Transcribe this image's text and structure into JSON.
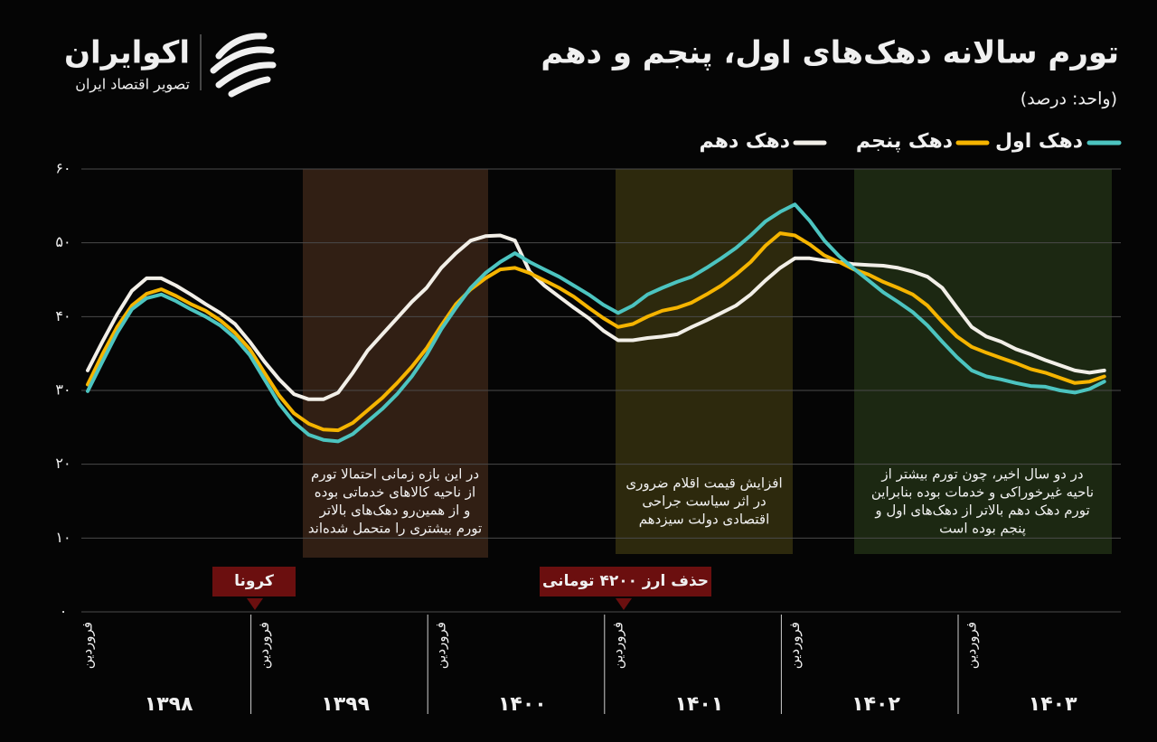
{
  "header": {
    "logo_name": "اکوایران",
    "logo_tagline": "تصویر اقتصاد ایران"
  },
  "chart_data": {
    "type": "line",
    "title": "تورم سالانه دهک‌های اول، پنجم و دهم",
    "subtitle": "(واحد: درصد)",
    "categories": [
      "فروردین",
      null,
      null,
      null,
      null,
      null,
      null,
      null,
      null,
      null,
      null,
      null,
      "فروردین",
      null,
      null,
      null,
      null,
      null,
      null,
      null,
      null,
      null,
      null,
      null,
      "فروردین",
      null,
      null,
      null,
      null,
      null,
      null,
      null,
      null,
      null,
      null,
      null,
      "فروردین",
      null,
      null,
      null,
      null,
      null,
      null,
      null,
      null,
      null,
      null,
      null,
      "فروردین",
      null,
      null,
      null,
      null,
      null,
      null,
      null,
      null,
      null,
      null,
      null,
      "فروردین",
      null,
      null,
      null,
      null,
      null,
      null,
      null,
      null,
      null
    ],
    "x_group_labels": [
      "۱۳۹۸",
      "۱۳۹۹",
      "۱۴۰۰",
      "۱۴۰۱",
      "۱۴۰۲",
      "۱۴۰۳"
    ],
    "series": [
      {
        "name": "دهک اول",
        "color": "#4cc4c0",
        "values": [
          29.9,
          33.9,
          37.8,
          41.0,
          42.5,
          43.0,
          42.1,
          41.0,
          40.0,
          38.8,
          37.1,
          34.8,
          31.5,
          28.2,
          25.7,
          24.0,
          23.3,
          23.1,
          24.1,
          25.8,
          27.5,
          29.5,
          31.9,
          34.8,
          38.3,
          41.2,
          43.9,
          45.9,
          47.4,
          48.6,
          47.4,
          46.4,
          45.4,
          44.2,
          43.0,
          41.6,
          40.5,
          41.5,
          43.0,
          43.9,
          44.7,
          45.4,
          46.6,
          47.9,
          49.3,
          51.0,
          52.9,
          54.2,
          55.2,
          53.0,
          50.3,
          48.2,
          46.5,
          44.9,
          43.3,
          42.0,
          40.6,
          38.8,
          36.6,
          34.5,
          32.7,
          31.9,
          31.5,
          31.0,
          30.6,
          30.5,
          30.0,
          29.7,
          30.2,
          31.2
        ]
      },
      {
        "name": "دهک پنجم",
        "color": "#f5b400",
        "values": [
          30.8,
          34.9,
          38.6,
          41.5,
          43.1,
          43.7,
          42.8,
          41.7,
          40.8,
          39.5,
          37.8,
          35.6,
          32.4,
          29.3,
          26.9,
          25.5,
          24.7,
          24.6,
          25.6,
          27.3,
          29.0,
          31.0,
          33.2,
          35.7,
          38.8,
          41.7,
          43.7,
          45.2,
          46.4,
          46.6,
          45.9,
          44.9,
          43.9,
          42.7,
          41.2,
          39.8,
          38.6,
          39.0,
          40.0,
          40.8,
          41.2,
          41.9,
          43.0,
          44.2,
          45.7,
          47.4,
          49.6,
          51.3,
          51.0,
          49.8,
          48.3,
          47.4,
          46.4,
          45.7,
          44.7,
          43.9,
          43.0,
          41.5,
          39.3,
          37.3,
          35.9,
          35.1,
          34.4,
          33.7,
          32.9,
          32.4,
          31.7,
          31.0,
          31.2,
          31.9
        ]
      },
      {
        "name": "دهک دهم",
        "color": "#f2efe8",
        "values": [
          32.7,
          36.6,
          40.3,
          43.5,
          45.2,
          45.2,
          44.2,
          43.0,
          41.7,
          40.5,
          39.0,
          36.6,
          33.9,
          31.5,
          29.5,
          28.8,
          28.8,
          29.7,
          32.4,
          35.4,
          37.6,
          39.8,
          42.0,
          43.9,
          46.6,
          48.6,
          50.3,
          50.9,
          51.0,
          50.3,
          46.1,
          44.2,
          42.7,
          41.2,
          39.8,
          38.1,
          36.8,
          36.8,
          37.1,
          37.3,
          37.6,
          38.6,
          39.5,
          40.5,
          41.5,
          43.0,
          44.9,
          46.6,
          47.9,
          47.9,
          47.6,
          47.4,
          47.1,
          47.0,
          46.9,
          46.6,
          46.1,
          45.4,
          43.9,
          41.2,
          38.6,
          37.3,
          36.6,
          35.6,
          34.9,
          34.1,
          33.4,
          32.7,
          32.4,
          32.7
        ]
      }
    ],
    "ylim": [
      0,
      60
    ],
    "yticks": [
      {
        "value": 0,
        "label": "۰"
      },
      {
        "value": 10,
        "label": "۱۰"
      },
      {
        "value": 20,
        "label": "۲۰"
      },
      {
        "value": 30,
        "label": "۳۰"
      },
      {
        "value": 40,
        "label": "۴۰"
      },
      {
        "value": 50,
        "label": "۵۰"
      },
      {
        "value": 60,
        "label": "۶۰"
      }
    ],
    "grid": true,
    "annotations": [
      [
        "در این بازه زمانی احتمالا تورم",
        "از ناحیه کالاهای خدماتی بوده",
        "و از همین‌رو دهک‌های بالاتر",
        "تورم بیشتری را متحمل شده‌اند"
      ],
      [
        "افزایش قیمت اقلام ضروری",
        "در اثر سیاست جراحی",
        "اقتصادی دولت سیزدهم"
      ],
      [
        "در دو سال اخیر، چون تورم بیشتر از",
        "ناحیه غیرخوراکی و خدمات بوده بنابراین",
        "تورم دهک دهم بالاتر از دهک‌های اول و",
        "پنجم بوده است"
      ]
    ],
    "events": [
      "کرونا",
      "حذف ارز ۴۲۰۰ تومانی"
    ]
  }
}
